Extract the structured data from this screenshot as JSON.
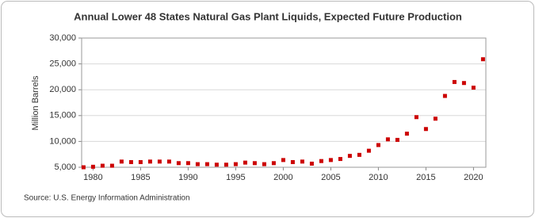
{
  "chart_data": {
    "type": "scatter",
    "title": "Annual Lower 48 States Natural Gas Plant Liquids, Expected Future Production",
    "y_label": "Million Barrels",
    "source": "Source: U.S. Energy Information Administration",
    "x": [
      1979,
      1980,
      1981,
      1982,
      1983,
      1984,
      1985,
      1986,
      1987,
      1988,
      1989,
      1990,
      1991,
      1992,
      1993,
      1994,
      1995,
      1996,
      1997,
      1998,
      1999,
      2000,
      2001,
      2002,
      2003,
      2004,
      2005,
      2006,
      2007,
      2008,
      2009,
      2010,
      2011,
      2012,
      2013,
      2014,
      2015,
      2016,
      2017,
      2018,
      2019,
      2020,
      2021
    ],
    "series": [
      {
        "name": "Expected Future Production",
        "color": "#cc0000",
        "values": [
          5000,
          5100,
          5300,
          5300,
          6100,
          6000,
          6000,
          6100,
          6100,
          6100,
          5800,
          5800,
          5600,
          5600,
          5500,
          5500,
          5600,
          5900,
          5800,
          5600,
          5800,
          6400,
          6000,
          6100,
          5700,
          6200,
          6400,
          6600,
          7200,
          7400,
          8200,
          9300,
          10400,
          10300,
          11500,
          14700,
          12400,
          14400,
          18800,
          21500,
          21300,
          20400,
          25900
        ]
      }
    ],
    "xlim": [
      1978.8,
      2021.3
    ],
    "xticks": [
      1980,
      1985,
      1990,
      1995,
      2000,
      2005,
      2010,
      2015,
      2020
    ],
    "ylim": [
      5000,
      30000
    ],
    "yticks": [
      {
        "value": 5000,
        "label": "5,000"
      },
      {
        "value": 10000,
        "label": "10,000"
      },
      {
        "value": 15000,
        "label": "15,000"
      },
      {
        "value": 20000,
        "label": "20,000"
      },
      {
        "value": 25000,
        "label": "25,000"
      },
      {
        "value": 30000,
        "label": "30,000"
      }
    ],
    "grid": true
  }
}
